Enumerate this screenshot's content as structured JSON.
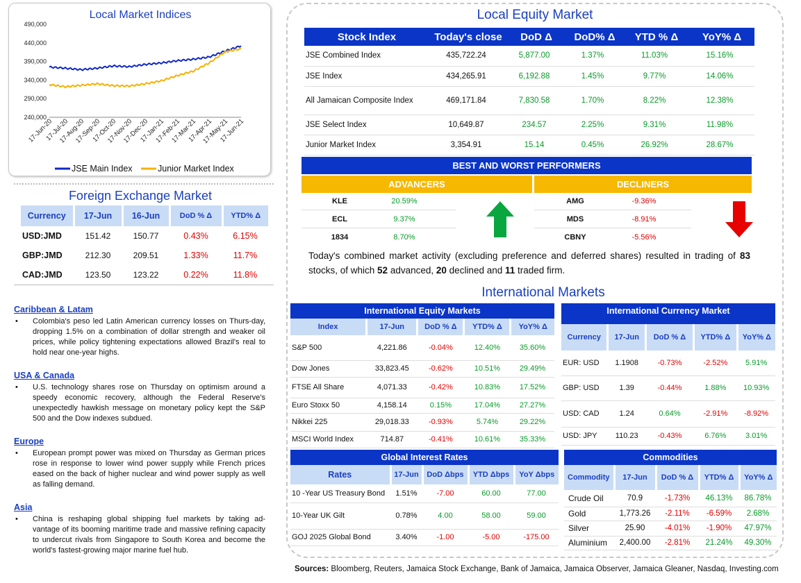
{
  "chart": {
    "title": "Local Market Indices",
    "y_ticks": [
      "490,000",
      "440,000",
      "390,000",
      "340,000",
      "290,000",
      "240,000"
    ],
    "x_ticks": [
      "17-Jun-20",
      "17-Jul-20",
      "17-Aug-20",
      "17-Sep-20",
      "17-Oct-20",
      "17-Nov-20",
      "17-Dec-20",
      "17-Jan-21",
      "17-Feb-21",
      "17-Mar-21",
      "17-Apr-21",
      "17-May-21",
      "17-Jun-21"
    ],
    "legend": [
      "JSE Main Index",
      "Junior Market Index"
    ],
    "colors": {
      "main": "#1028c8",
      "junior": "#f7b000"
    }
  },
  "chart_data": {
    "type": "line",
    "title": "Local Market Indices",
    "x": [
      "17-Jun-20",
      "17-Jul-20",
      "17-Aug-20",
      "17-Sep-20",
      "17-Oct-20",
      "17-Nov-20",
      "17-Dec-20",
      "17-Jan-21",
      "17-Feb-21",
      "17-Mar-21",
      "17-Apr-21",
      "17-May-21",
      "17-Jun-21"
    ],
    "ylim": [
      240000,
      490000
    ],
    "series": [
      {
        "name": "JSE Main Index",
        "values": [
          375000,
          372000,
          368000,
          372000,
          378000,
          376000,
          382000,
          386000,
          392000,
          396000,
          402000,
          418000,
          432000
        ]
      },
      {
        "name": "Junior Market Index",
        "values": [
          328000,
          322000,
          326000,
          330000,
          325000,
          324000,
          330000,
          338000,
          352000,
          364000,
          386000,
          416000,
          424000
        ]
      }
    ]
  },
  "fx": {
    "title": "Foreign Exchange Market",
    "headers": [
      "Currency",
      "17-Jun",
      "16-Jun",
      "DoD % Δ",
      "YTD% Δ"
    ],
    "rows": [
      [
        "USD:JMD",
        "151.42",
        "150.77",
        "0.43%",
        "6.15%"
      ],
      [
        "GBP:JMD",
        "212.30",
        "209.51",
        "1.33%",
        "11.7%"
      ],
      [
        "CAD:JMD",
        "123.50",
        "123.22",
        "0.22%",
        "11.8%"
      ]
    ]
  },
  "news": [
    {
      "heading": "Caribbean & Latam",
      "text": "Colombia's peso led Latin American currency losses on Thurs-day, dropping 1.5% on a combination of dollar strength and weaker oil prices, while policy tightening expectations allowed Brazil's real to hold near one-year highs."
    },
    {
      "heading": "USA & Canada",
      "text": "U.S. technology shares rose on Thursday on optimism around a speedy economic recovery, although the Federal Reserve's unexpectedly hawkish message on monetary policy kept the S&P 500 and the Dow indexes subdued."
    },
    {
      "heading": "Europe",
      "text": "European prompt power was mixed on Thursday as German prices rose in response to lower wind power supply while French prices eased on the back of higher nuclear and wind power supply as well as falling demand."
    },
    {
      "heading": "Asia",
      "text": "China is reshaping global shipping fuel markets by taking ad-vantage of its booming maritime trade and massive refining capacity to undercut rivals from Singapore to South Korea and become the world's fastest-growing major marine fuel hub."
    }
  ],
  "equity": {
    "title": "Local Equity Market",
    "headers": [
      "Stock Index",
      "Today's close",
      "DoD Δ",
      "DoD% Δ",
      "YTD % Δ",
      "YoY% Δ"
    ],
    "rows": [
      [
        "JSE Combined Index",
        "435,722.24",
        "5,877.00",
        "1.37%",
        "11.03%",
        "15.16%"
      ],
      [
        "JSE Index",
        "434,265.91",
        "6,192.88",
        "1.45%",
        "9.77%",
        "14.06%"
      ],
      [
        "All Jamaican Composite Index",
        "469,171.84",
        "7,830.58",
        "1.70%",
        "8.22%",
        "12.38%"
      ],
      [
        "JSE Select Index",
        "10,649.87",
        "234.57",
        "2.25%",
        "9.31%",
        "11.98%"
      ],
      [
        "Junior Market Index",
        "3,354.91",
        "15.14",
        "0.45%",
        "26.92%",
        "28.67%"
      ]
    ]
  },
  "performers": {
    "title": "BEST AND WORST PERFORMERS",
    "advancers_label": "ADVANCERS",
    "decliners_label": "DECLINERS",
    "advancers": [
      [
        "KLE",
        "20.59%"
      ],
      [
        "ECL",
        "9.37%"
      ],
      [
        "1834",
        "8.70%"
      ]
    ],
    "decliners": [
      [
        "AMG",
        "-9.36%"
      ],
      [
        "MDS",
        "-8.91%"
      ],
      [
        "CBNY",
        "-5.56%"
      ]
    ]
  },
  "summary": {
    "part1": "Today's combined market activity (excluding preference and deferred shares) resulted in trading of ",
    "traded": "83",
    "part2": " stocks, of which ",
    "advanced": "52",
    "part3": " advanced, ",
    "declined": "20",
    "part4": " declined and ",
    "firm": "11",
    "part5": " traded firm."
  },
  "intl": {
    "title": "International Markets",
    "equity": {
      "title": "International Equity Markets",
      "headers": [
        "Index",
        "17-Jun",
        "DoD % Δ",
        "YTD% Δ",
        "YoY% Δ"
      ],
      "rows": [
        [
          "S&P 500",
          "4,221.86",
          "-0.04%",
          "12.40%",
          "35.60%"
        ],
        [
          "Dow Jones",
          "33,823.45",
          "-0.62%",
          "10.51%",
          "29.49%"
        ],
        [
          "FTSE All Share",
          "4,071.33",
          "-0.42%",
          "10.83%",
          "17.52%"
        ],
        [
          "Euro Stoxx 50",
          "4,158.14",
          "0.15%",
          "17.04%",
          "27.27%"
        ],
        [
          "Nikkei 225",
          "29,018.33",
          "-0.93%",
          "5.74%",
          "29.22%"
        ],
        [
          "MSCI World Index",
          "714.87",
          "-0.41%",
          "10.61%",
          "35.33%"
        ]
      ]
    },
    "currency": {
      "title": "International Currency Market",
      "headers": [
        "Currency",
        "17-Jun",
        "DoD % Δ",
        "YTD% Δ",
        "YoY% Δ"
      ],
      "rows": [
        [
          "EUR: USD",
          "1.1908",
          "-0.73%",
          "-2.52%",
          "5.91%"
        ],
        [
          "GBP: USD",
          "1.39",
          "-0.44%",
          "1.88%",
          "10.93%"
        ],
        [
          "USD: CAD",
          "1.24",
          "0.64%",
          "-2.91%",
          "-8.92%"
        ],
        [
          "USD: JPY",
          "110.23",
          "-0.43%",
          "6.76%",
          "3.01%"
        ]
      ]
    },
    "rates": {
      "title": "Global Interest Rates",
      "headers": [
        "Rates",
        "17-Jun",
        "DoD Δbps",
        "YTD Δbps",
        "YoY Δbps"
      ],
      "rows": [
        [
          "10 -Year US Treasury Bond",
          "1.51%",
          "-7.00",
          "60.00",
          "77.00"
        ],
        [
          "10-Year UK Gilt",
          "0.78%",
          "4.00",
          "58.00",
          "59.00"
        ],
        [
          "GOJ 2025 Global Bond",
          "3.40%",
          "-1.00",
          "-5.00",
          "-175.00"
        ]
      ]
    },
    "commodities": {
      "title": "Commodities",
      "headers": [
        "Commodity",
        "17-Jun",
        "DoD % Δ",
        "YTD% Δ",
        "YoY% Δ"
      ],
      "rows": [
        [
          "Crude Oil",
          "70.9",
          "-1.73%",
          "46.13%",
          "86.78%"
        ],
        [
          "Gold",
          "1,773.26",
          "-2.11%",
          "-6.59%",
          "2.68%"
        ],
        [
          "Silver",
          "25.90",
          "-4.01%",
          "-1.90%",
          "47.97%"
        ],
        [
          "Aluminium",
          "2,400.00",
          "-2.81%",
          "21.24%",
          "49.30%"
        ]
      ]
    }
  },
  "sources": {
    "label": "Sources:",
    "text": " Bloomberg, Reuters, Jamaica Stock Exchange, Bank of Jamaica, Jamaica Observer, Jamaica Gleaner, Nasdaq, Investing.com"
  }
}
